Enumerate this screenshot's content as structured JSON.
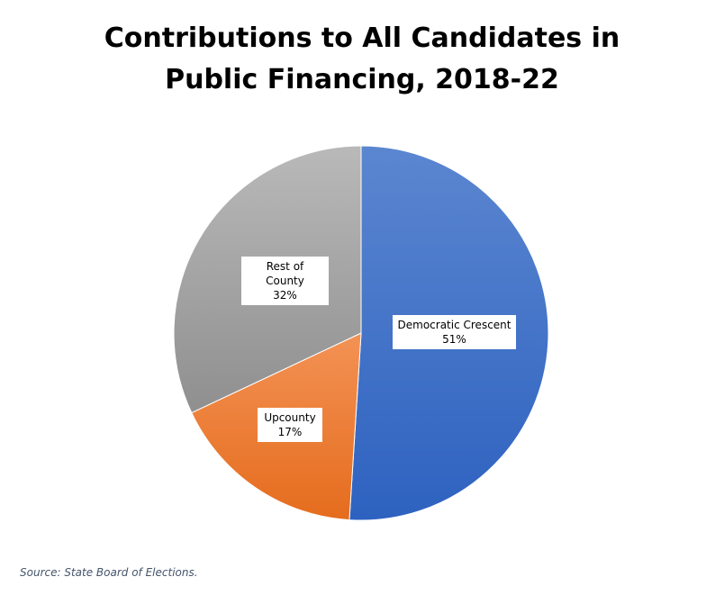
{
  "chart_data": {
    "type": "pie",
    "title_lines": [
      "Contributions to All Candidates in",
      "Public Financing, 2018-22"
    ],
    "slices": [
      {
        "label": "Democratic Crescent",
        "value": 51,
        "value_label": "51%",
        "color": "#4472C4",
        "color_light": "#5B86D0"
      },
      {
        "label": "Upcounty",
        "value": 17,
        "value_label": "17%",
        "color": "#ED7D31",
        "color_light": "#F39255"
      },
      {
        "label": "Rest of County",
        "value": 32,
        "value_label": "32%",
        "color": "#A5A5A5",
        "color_light": "#B8B8B8"
      }
    ],
    "source": "Source: State Board of Elections."
  }
}
